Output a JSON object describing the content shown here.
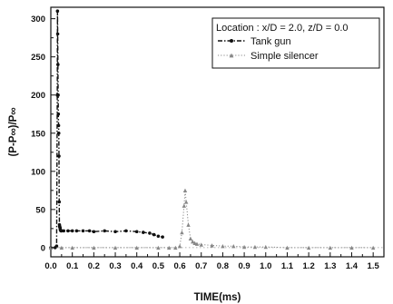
{
  "chart_data": {
    "type": "line",
    "title": "",
    "xlabel": "TIME(ms)",
    "ylabel": "(P-P∞)/P∞",
    "xlim": [
      0.0,
      1.55
    ],
    "ylim": [
      -12,
      315
    ],
    "xticks": [
      0.0,
      0.1,
      0.2,
      0.3,
      0.4,
      0.5,
      0.6,
      0.7,
      0.8,
      0.9,
      1.0,
      1.1,
      1.2,
      1.3,
      1.4,
      1.5
    ],
    "xtick_labels": [
      "0.0",
      "0.1",
      "0.2",
      "0.3",
      "0.4",
      "0.5",
      "0.6",
      "0.7",
      "0.8",
      "0.9",
      "1.0",
      "1.1",
      "1.2",
      "1.3",
      "1.4",
      "1.5"
    ],
    "yticks": [
      0,
      50,
      100,
      150,
      200,
      250,
      300
    ],
    "ytick_labels": [
      "0",
      "50",
      "100",
      "150",
      "200",
      "250",
      "300"
    ],
    "legend": {
      "title": "Location : x/D = 2.0, z/D = 0.0",
      "placement": "top-right"
    },
    "series": [
      {
        "name": "Tank gun",
        "color": "#111111",
        "line": "dash-dot",
        "marker": "dot",
        "x": [
          0.0,
          0.02,
          0.027,
          0.03,
          0.031,
          0.032,
          0.033,
          0.034,
          0.035,
          0.036,
          0.037,
          0.038,
          0.039,
          0.04,
          0.041,
          0.042,
          0.043,
          0.044,
          0.045,
          0.047,
          0.05,
          0.06,
          0.08,
          0.1,
          0.12,
          0.15,
          0.18,
          0.2,
          0.25,
          0.3,
          0.35,
          0.4,
          0.43,
          0.46,
          0.48,
          0.5,
          0.52
        ],
        "y": [
          0,
          0,
          2,
          200,
          310,
          280,
          240,
          200,
          175,
          160,
          150,
          120,
          60,
          30,
          28,
          27,
          26,
          24,
          23,
          22,
          22,
          22,
          22,
          22,
          22,
          22,
          22,
          21,
          22,
          21,
          22,
          21,
          20,
          19,
          17,
          15,
          14
        ]
      },
      {
        "name": "Simple silencer",
        "color": "#888888",
        "line": "dotted",
        "marker": "triangle",
        "x": [
          0.0,
          0.05,
          0.1,
          0.2,
          0.3,
          0.4,
          0.5,
          0.55,
          0.58,
          0.6,
          0.61,
          0.62,
          0.625,
          0.63,
          0.64,
          0.65,
          0.66,
          0.67,
          0.68,
          0.7,
          0.75,
          0.8,
          0.85,
          0.9,
          0.95,
          1.0,
          1.1,
          1.2,
          1.3,
          1.4,
          1.5
        ],
        "y": [
          0,
          0,
          0,
          0,
          0,
          0,
          0,
          0,
          0,
          2,
          20,
          55,
          75,
          60,
          30,
          12,
          8,
          6,
          5,
          4,
          3,
          2,
          2,
          1,
          1,
          1,
          0,
          0,
          0,
          0,
          0
        ]
      }
    ]
  }
}
